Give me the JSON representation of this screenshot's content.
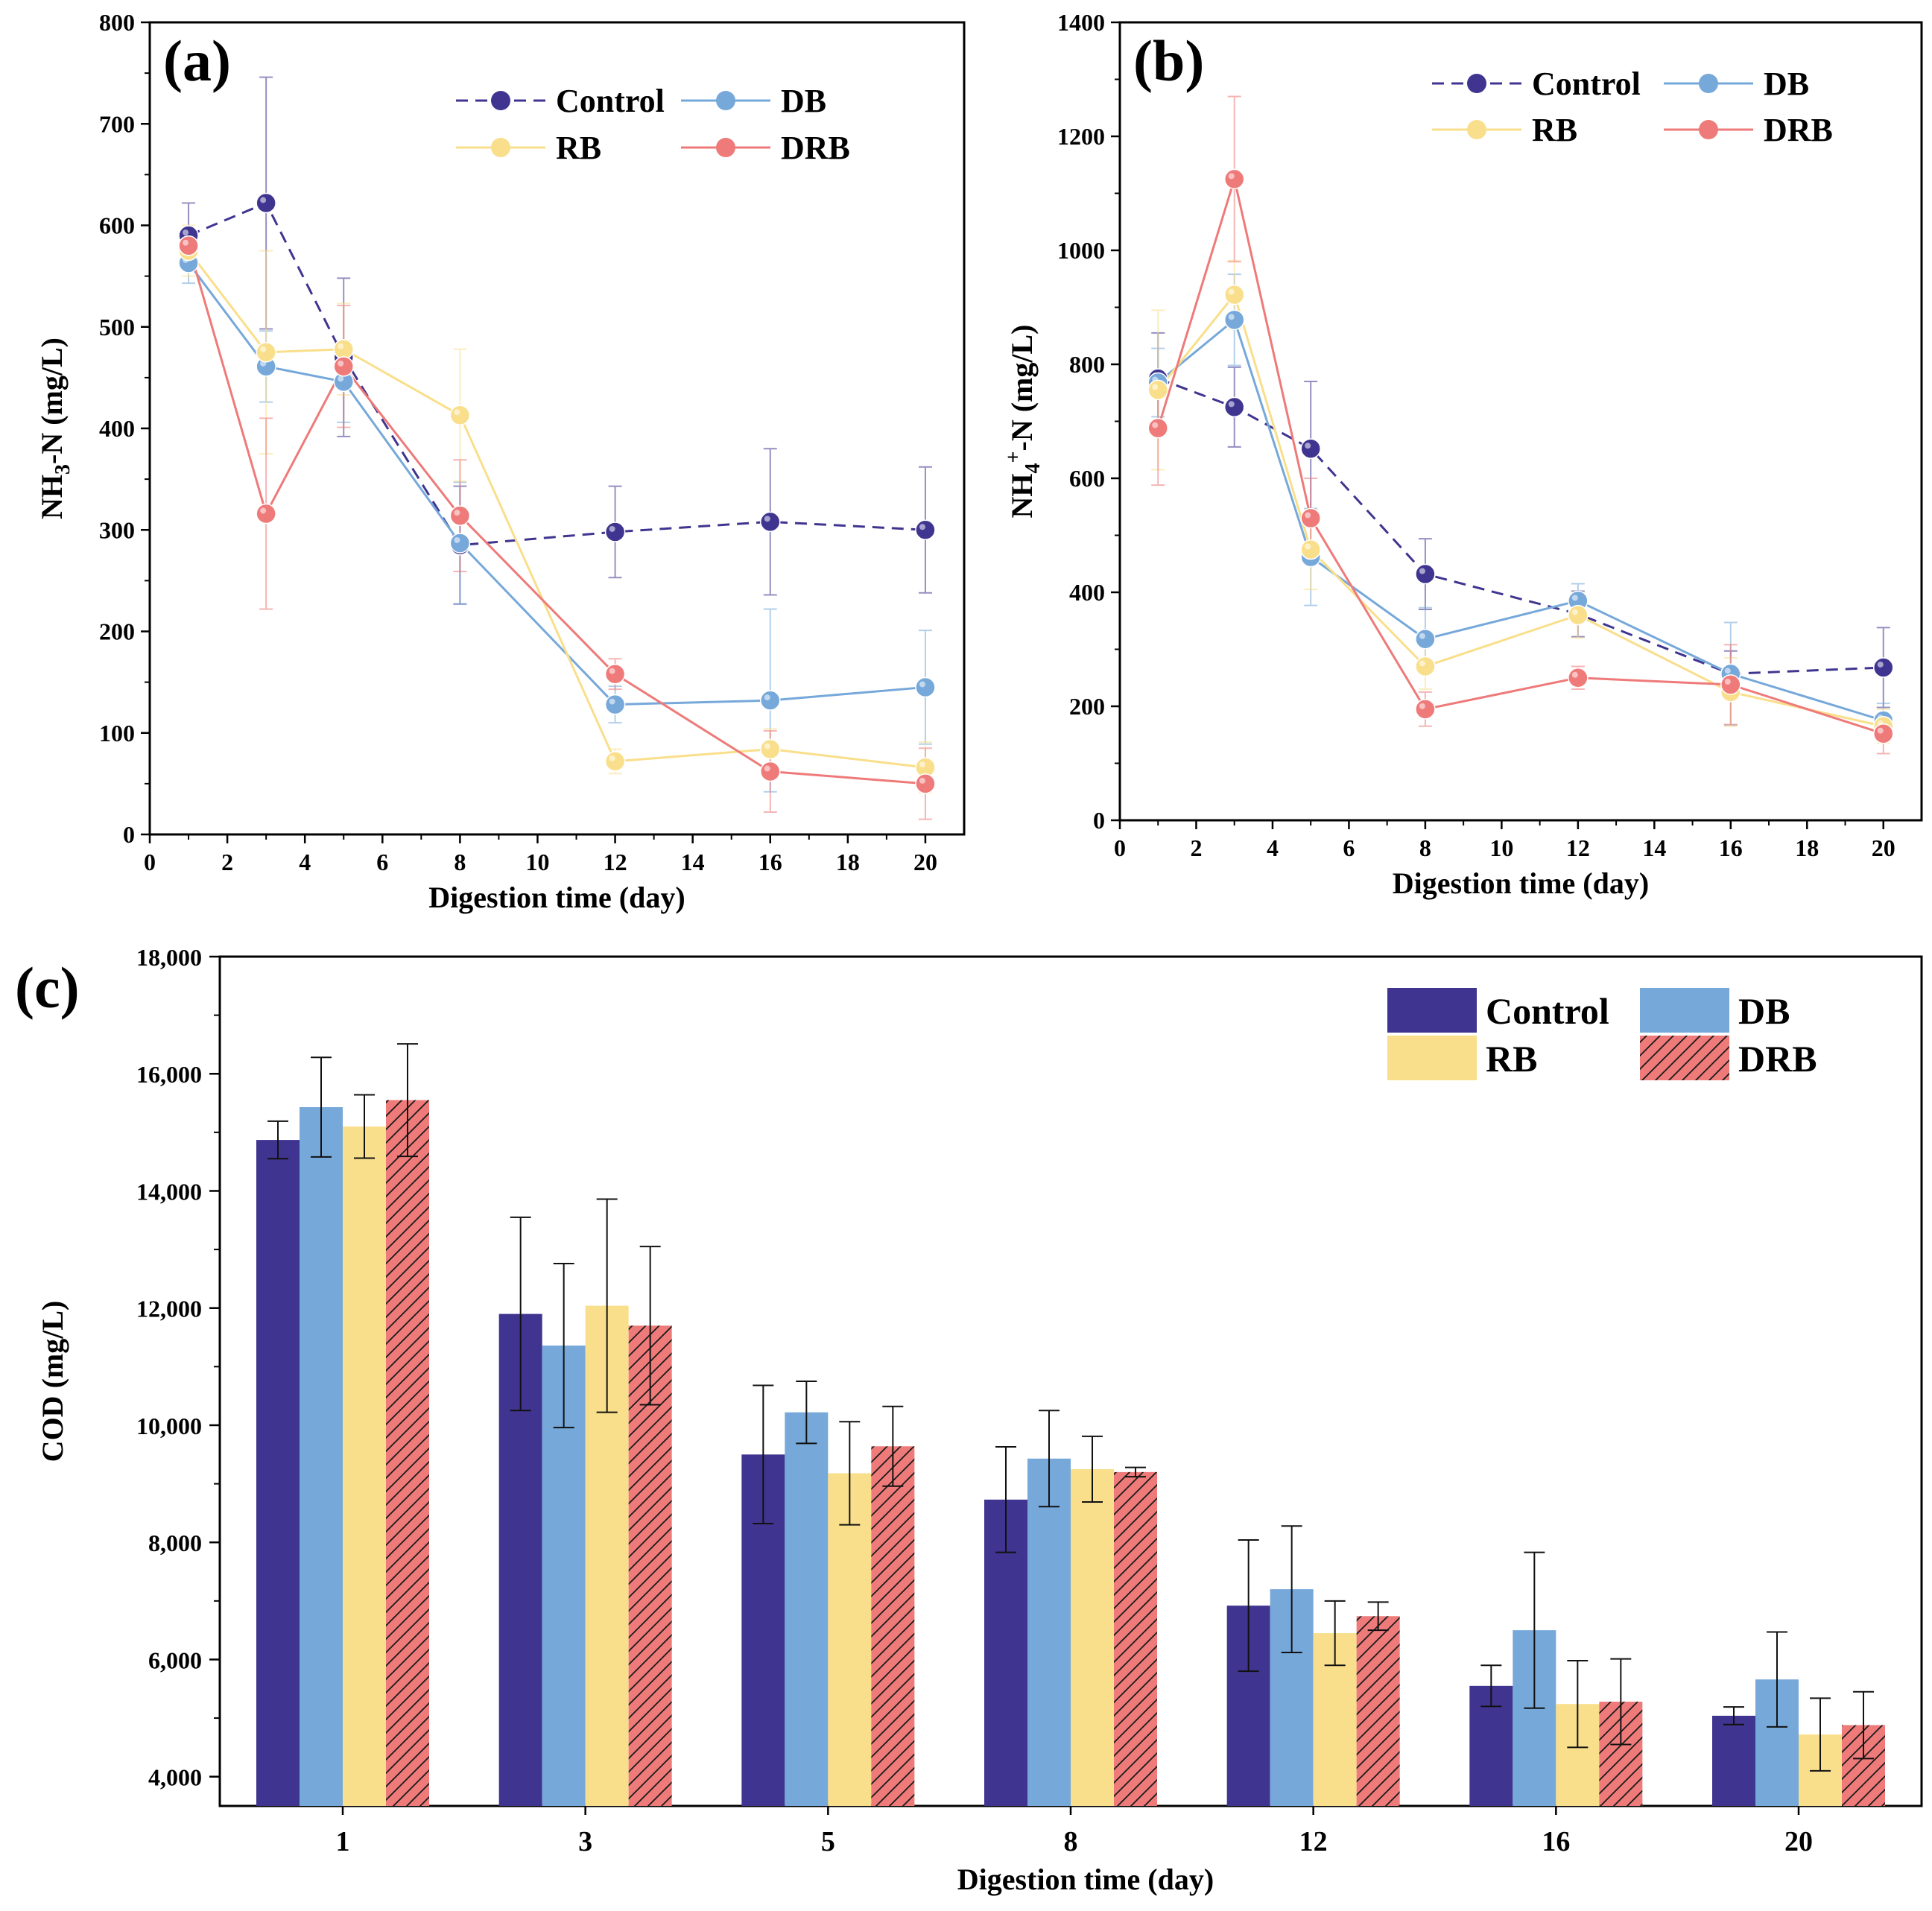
{
  "colors": {
    "control": "#3F3590",
    "db": "#76A8DA",
    "rb": "#F9DF8B",
    "drb": "#EE7A79",
    "axis": "#000000"
  },
  "chart_data": [
    {
      "panel": "(a)",
      "type": "line",
      "xlabel": "Digestion time (day)",
      "ylabel_parts": [
        "NH",
        "3",
        "-N (mg/L)"
      ],
      "xlim": [
        0,
        21
      ],
      "ylim": [
        0,
        800
      ],
      "xticks": [
        0,
        2,
        4,
        6,
        8,
        10,
        12,
        14,
        16,
        18,
        20
      ],
      "yticks": [
        0,
        100,
        200,
        300,
        400,
        500,
        600,
        700,
        800
      ],
      "x": [
        1,
        3,
        5,
        8,
        12,
        16,
        20
      ],
      "legend_position": "top-right",
      "series": [
        {
          "name": "Control",
          "key": "control",
          "dashed": true,
          "values": [
            590,
            622,
            470,
            285,
            298,
            308,
            300
          ],
          "errors": [
            32,
            124,
            78,
            58,
            45,
            72,
            62
          ]
        },
        {
          "name": "DB",
          "key": "db",
          "dashed": false,
          "values": [
            563,
            461,
            446,
            287,
            128,
            132,
            145
          ],
          "errors": [
            20,
            35,
            40,
            60,
            18,
            90,
            56
          ]
        },
        {
          "name": "RB",
          "key": "rb",
          "dashed": false,
          "values": [
            575,
            475,
            478,
            413,
            72,
            84,
            66
          ],
          "errors": [
            25,
            100,
            45,
            65,
            12,
            20,
            25
          ]
        },
        {
          "name": "DRB",
          "key": "drb",
          "dashed": false,
          "values": [
            580,
            316,
            461,
            314,
            158,
            62,
            50
          ],
          "errors": [
            15,
            94,
            60,
            55,
            15,
            40,
            35
          ]
        }
      ]
    },
    {
      "panel": "(b)",
      "type": "line",
      "xlabel": "Digestion time (day)",
      "ylabel_parts": [
        "NH",
        "4",
        "+",
        "-N (mg/L)"
      ],
      "xlim": [
        0,
        21
      ],
      "ylim": [
        0,
        1400
      ],
      "xticks": [
        0,
        2,
        4,
        6,
        8,
        10,
        12,
        14,
        16,
        18,
        20
      ],
      "yticks": [
        0,
        200,
        400,
        600,
        800,
        1000,
        1200,
        1400
      ],
      "x": [
        1,
        3,
        5,
        8,
        12,
        16,
        20
      ],
      "legend_position": "top-right",
      "series": [
        {
          "name": "Control",
          "key": "control",
          "dashed": true,
          "values": [
            775,
            725,
            652,
            432,
            362,
            257,
            268
          ],
          "errors": [
            80,
            70,
            118,
            62,
            40,
            40,
            70
          ]
        },
        {
          "name": "DB",
          "key": "db",
          "dashed": false,
          "values": [
            768,
            878,
            462,
            318,
            385,
            257,
            175
          ],
          "errors": [
            60,
            80,
            85,
            55,
            30,
            90,
            30
          ]
        },
        {
          "name": "RB",
          "key": "rb",
          "dashed": false,
          "values": [
            755,
            922,
            475,
            270,
            360,
            225,
            165
          ],
          "errors": [
            140,
            60,
            70,
            40,
            40,
            60,
            30
          ]
        },
        {
          "name": "DRB",
          "key": "drb",
          "dashed": false,
          "values": [
            688,
            1125,
            530,
            195,
            250,
            238,
            152
          ],
          "errors": [
            100,
            145,
            70,
            30,
            20,
            70,
            35
          ]
        }
      ]
    },
    {
      "panel": "(c)",
      "type": "bar",
      "xlabel": "Digestion time (day)",
      "ylabel": "COD (mg/L)",
      "ylim": [
        3500,
        18000
      ],
      "yticks": [
        4000,
        6000,
        8000,
        10000,
        12000,
        14000,
        16000,
        18000
      ],
      "ytick_labels": [
        "4,000",
        "6,000",
        "8,000",
        "10,000",
        "12,000",
        "14,000",
        "16,000",
        "18,000"
      ],
      "categories": [
        "1",
        "3",
        "5",
        "8",
        "12",
        "16",
        "20"
      ],
      "legend_position": "top-right",
      "series": [
        {
          "name": "Control",
          "key": "control",
          "hatched": false,
          "values": [
            14870,
            11900,
            9500,
            8730,
            6920,
            5550,
            5040
          ],
          "errors": [
            320,
            1650,
            1180,
            900,
            1120,
            350,
            150
          ]
        },
        {
          "name": "DB",
          "key": "db",
          "hatched": false,
          "values": [
            15430,
            11360,
            10220,
            9430,
            7200,
            6500,
            5660
          ],
          "errors": [
            850,
            1400,
            530,
            820,
            1080,
            1330,
            810
          ]
        },
        {
          "name": "RB",
          "key": "rb",
          "hatched": false,
          "values": [
            15100,
            12040,
            9180,
            9250,
            6450,
            5240,
            4720
          ],
          "errors": [
            540,
            1820,
            880,
            560,
            550,
            740,
            620
          ]
        },
        {
          "name": "DRB",
          "key": "drb",
          "hatched": true,
          "values": [
            15550,
            11700,
            9640,
            9200,
            6740,
            5280,
            4880
          ],
          "errors": [
            960,
            1350,
            680,
            80,
            240,
            730,
            570
          ]
        }
      ]
    }
  ]
}
